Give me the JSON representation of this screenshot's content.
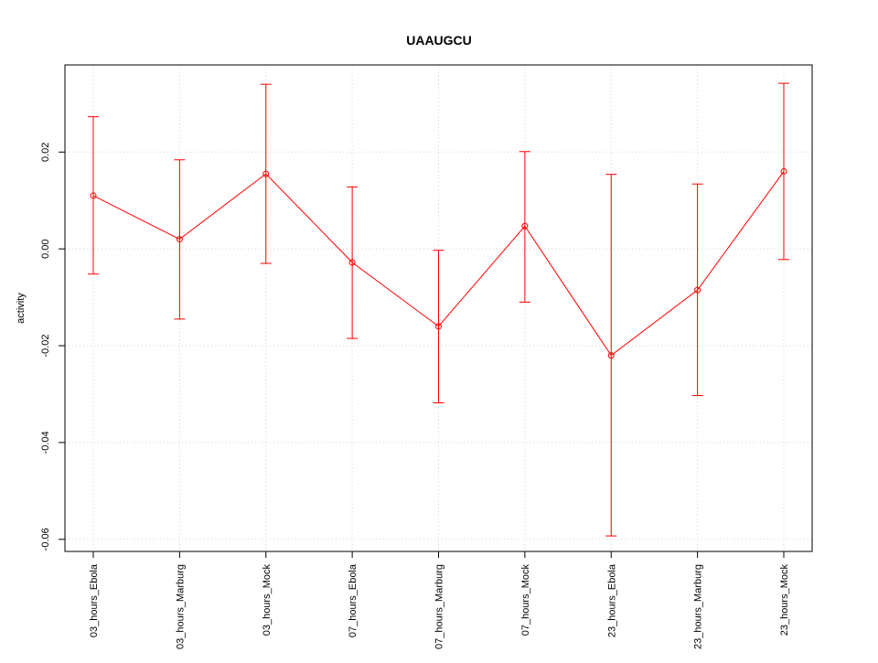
{
  "chart_data": {
    "type": "line",
    "title": "UAAUGCU",
    "xlabel": "",
    "ylabel": "activity",
    "categories": [
      "03_hours_Ebola",
      "03_hours_Marburg",
      "03_hours_Mock",
      "07_hours_Ebola",
      "07_hours_Marburg",
      "07_hours_Mock",
      "23_hours_Ebola",
      "23_hours_Marburg",
      "23_hours_Mock"
    ],
    "series": [
      {
        "values": [
          0.011,
          0.002,
          0.0155,
          -0.0028,
          -0.016,
          0.0047,
          -0.022,
          -0.0085,
          0.016
        ],
        "lower": [
          -0.0052,
          -0.0145,
          -0.003,
          -0.0185,
          -0.0318,
          -0.011,
          -0.0593,
          -0.0303,
          -0.0022
        ],
        "upper": [
          0.0273,
          0.0184,
          0.034,
          0.0128,
          -0.0003,
          0.0201,
          0.0154,
          0.0134,
          0.0342
        ]
      }
    ],
    "ylim": [
      -0.0625,
      0.038
    ],
    "yticks": [
      "-0.06",
      "-0.04",
      "-0.02",
      "0.00",
      "0.02"
    ],
    "ytick_values": [
      -0.06,
      -0.04,
      -0.02,
      0.0,
      0.02
    ],
    "grid": true,
    "colors": {
      "series": "#ff0000",
      "axis": "#000000",
      "grid": "#d3d3d3"
    }
  }
}
